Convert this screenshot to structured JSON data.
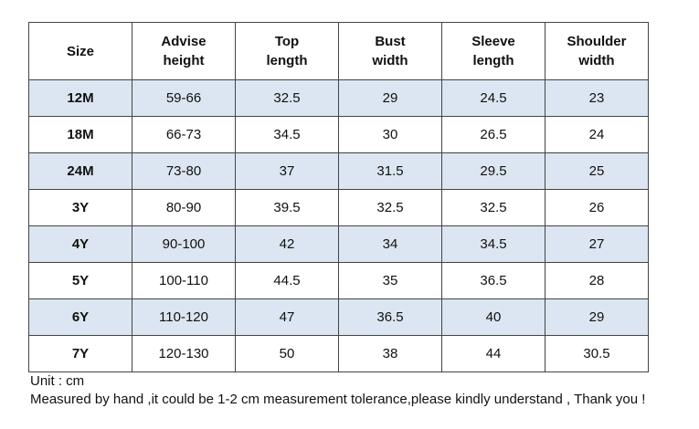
{
  "table": {
    "header": [
      "Size",
      "Advise height",
      "Top length",
      "Bust width",
      "Sleeve length",
      "Shoulder width"
    ],
    "rows": [
      [
        "12M",
        "59-66",
        "32.5",
        "29",
        "24.5",
        "23"
      ],
      [
        "18M",
        "66-73",
        "34.5",
        "30",
        "26.5",
        "24"
      ],
      [
        "24M",
        "73-80",
        "37",
        "31.5",
        "29.5",
        "25"
      ],
      [
        "3Y",
        "80-90",
        "39.5",
        "32.5",
        "32.5",
        "26"
      ],
      [
        "4Y",
        "90-100",
        "42",
        "34",
        "34.5",
        "27"
      ],
      [
        "5Y",
        "100-110",
        "44.5",
        "35",
        "36.5",
        "28"
      ],
      [
        "6Y",
        "110-120",
        "47",
        "36.5",
        "40",
        "29"
      ],
      [
        "7Y",
        "120-130",
        "50",
        "38",
        "44",
        "30.5"
      ]
    ]
  },
  "notes": {
    "unit": "Unit : cm",
    "tolerance": "Measured by hand ,it could be 1-2 cm measurement tolerance,please kindly understand , Thank you !"
  }
}
